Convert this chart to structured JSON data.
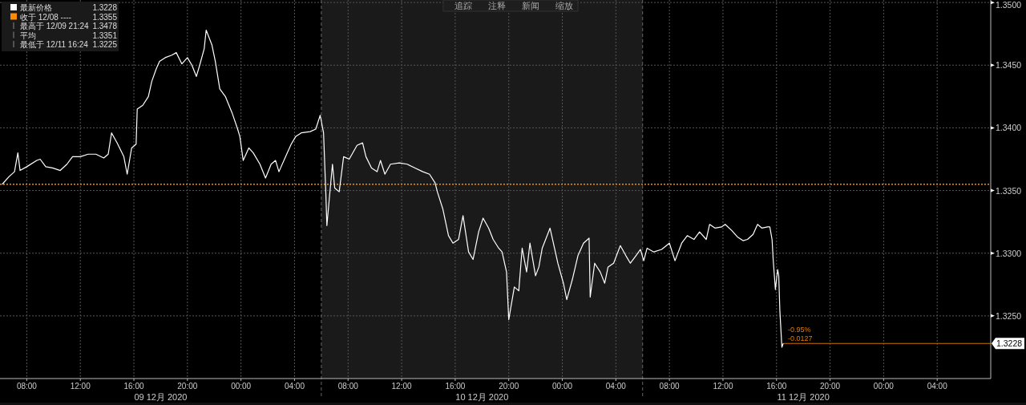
{
  "chart_data": {
    "type": "line",
    "xlim": [
      "2020-12-09T06:00",
      "2020-12-12T08:00"
    ],
    "xticks": [
      {
        "value": "2020-12-09T08:00",
        "label": "08:00"
      },
      {
        "value": "2020-12-09T12:00",
        "label": "12:00"
      },
      {
        "value": "2020-12-09T16:00",
        "label": "16:00"
      },
      {
        "value": "2020-12-09T20:00",
        "label": "20:00"
      },
      {
        "value": "2020-12-10T00:00",
        "label": "00:00"
      },
      {
        "value": "2020-12-10T04:00",
        "label": "04:00"
      },
      {
        "value": "2020-12-10T08:00",
        "label": "08:00"
      },
      {
        "value": "2020-12-10T12:00",
        "label": "12:00"
      },
      {
        "value": "2020-12-10T16:00",
        "label": "16:00"
      },
      {
        "value": "2020-12-10T20:00",
        "label": "20:00"
      },
      {
        "value": "2020-12-11T00:00",
        "label": "00:00"
      },
      {
        "value": "2020-12-11T04:00",
        "label": "04:00"
      },
      {
        "value": "2020-12-11T08:00",
        "label": "08:00"
      },
      {
        "value": "2020-12-11T12:00",
        "label": "12:00"
      },
      {
        "value": "2020-12-11T16:00",
        "label": "16:00"
      },
      {
        "value": "2020-12-11T20:00",
        "label": "20:00"
      },
      {
        "value": "2020-12-12T00:00",
        "label": "00:00"
      },
      {
        "value": "2020-12-12T04:00",
        "label": "04:00"
      }
    ],
    "x2lim": [
      "2020-12-09T06:00",
      "2020-12-12T08:00"
    ],
    "x2ticks": [
      {
        "value": "2020-12-09T18:00",
        "label": "09 12月 2020"
      },
      {
        "value": "2020-12-10T18:00",
        "label": "10 12月 2020"
      },
      {
        "value": "2020-12-11T18:00",
        "label": "11 12月 2020"
      }
    ],
    "ylim": [
      1.32,
      1.3502
    ],
    "yticks": [
      {
        "value": 1.325,
        "label": "1.3250"
      },
      {
        "value": 1.33,
        "label": "1.3300"
      },
      {
        "value": 1.335,
        "label": "1.3350"
      },
      {
        "value": 1.34,
        "label": "1.3400"
      },
      {
        "value": 1.345,
        "label": "1.3450"
      },
      {
        "value": 1.35,
        "label": "1.3500"
      }
    ],
    "grid": true,
    "legend": "top left",
    "line_style": "solid",
    "series": [
      {
        "name": "最新价格",
        "color": "#ffffff",
        "x": [
          "2020-12-09T06:10",
          "2020-12-09T06:40",
          "2020-12-09T07:05",
          "2020-12-09T07:20",
          "2020-12-09T07:30",
          "2020-12-09T08:00",
          "2020-12-09T08:45",
          "2020-12-09T09:00",
          "2020-12-09T09:25",
          "2020-12-09T09:55",
          "2020-12-09T10:30",
          "2020-12-09T11:00",
          "2020-12-09T11:25",
          "2020-12-09T12:00",
          "2020-12-09T12:35",
          "2020-12-09T13:10",
          "2020-12-09T13:45",
          "2020-12-09T14:05",
          "2020-12-09T14:20",
          "2020-12-09T14:45",
          "2020-12-09T15:15",
          "2020-12-09T15:30",
          "2020-12-09T15:50",
          "2020-12-09T16:10",
          "2020-12-09T16:15",
          "2020-12-09T16:40",
          "2020-12-09T17:05",
          "2020-12-09T17:20",
          "2020-12-09T17:40",
          "2020-12-09T17:55",
          "2020-12-09T18:20",
          "2020-12-09T18:50",
          "2020-12-09T19:10",
          "2020-12-09T19:35",
          "2020-12-09T20:00",
          "2020-12-09T20:20",
          "2020-12-09T20:40",
          "2020-12-09T20:55",
          "2020-12-09T21:15",
          "2020-12-09T21:24",
          "2020-12-09T21:50",
          "2020-12-09T22:05",
          "2020-12-09T22:25",
          "2020-12-09T22:50",
          "2020-12-09T23:20",
          "2020-12-09T23:45",
          "2020-12-09T23:55",
          "2020-12-10T00:10",
          "2020-12-10T00:35",
          "2020-12-10T00:55",
          "2020-12-10T01:25",
          "2020-12-10T01:50",
          "2020-12-10T02:15",
          "2020-12-10T02:35",
          "2020-12-10T02:50",
          "2020-12-10T03:20",
          "2020-12-10T03:45",
          "2020-12-10T04:05",
          "2020-12-10T04:30",
          "2020-12-10T05:10",
          "2020-12-10T05:35",
          "2020-12-10T05:55",
          "2020-12-10T06:10",
          "2020-12-10T06:20",
          "2020-12-10T06:25",
          "2020-12-10T06:35",
          "2020-12-10T06:50",
          "2020-12-10T07:00",
          "2020-12-10T07:20",
          "2020-12-10T07:40",
          "2020-12-10T08:05",
          "2020-12-10T08:40",
          "2020-12-10T09:05",
          "2020-12-10T09:20",
          "2020-12-10T09:45",
          "2020-12-10T10:10",
          "2020-12-10T10:25",
          "2020-12-10T10:45",
          "2020-12-10T11:10",
          "2020-12-10T11:50",
          "2020-12-10T12:25",
          "2020-12-10T13:00",
          "2020-12-10T13:35",
          "2020-12-10T14:05",
          "2020-12-10T14:30",
          "2020-12-10T14:40",
          "2020-12-10T15:05",
          "2020-12-10T15:30",
          "2020-12-10T15:50",
          "2020-12-10T16:15",
          "2020-12-10T16:35",
          "2020-12-10T17:00",
          "2020-12-10T17:20",
          "2020-12-10T17:45",
          "2020-12-10T18:05",
          "2020-12-10T18:30",
          "2020-12-10T18:50",
          "2020-12-10T19:15",
          "2020-12-10T19:30",
          "2020-12-10T19:50",
          "2020-12-10T20:00",
          "2020-12-10T20:25",
          "2020-12-10T20:45",
          "2020-12-10T21:00",
          "2020-12-10T21:20",
          "2020-12-10T21:35",
          "2020-12-10T22:00",
          "2020-12-10T22:15",
          "2020-12-10T22:30",
          "2020-12-10T23:05",
          "2020-12-10T23:25",
          "2020-12-10T23:40",
          "2020-12-11T00:05",
          "2020-12-11T00:20",
          "2020-12-11T00:45",
          "2020-12-11T01:10",
          "2020-12-11T01:35",
          "2020-12-11T02:00",
          "2020-12-11T02:05",
          "2020-12-11T02:25",
          "2020-12-11T02:50",
          "2020-12-11T03:10",
          "2020-12-11T03:25",
          "2020-12-11T03:50",
          "2020-12-11T04:20",
          "2020-12-11T04:45",
          "2020-12-11T05:05",
          "2020-12-11T05:30",
          "2020-12-11T05:50",
          "2020-12-11T06:05",
          "2020-12-11T06:20",
          "2020-12-11T06:50",
          "2020-12-11T07:25",
          "2020-12-11T08:00",
          "2020-12-11T08:25",
          "2020-12-11T08:55",
          "2020-12-11T09:20",
          "2020-12-11T09:50",
          "2020-12-11T10:15",
          "2020-12-11T10:45",
          "2020-12-11T11:00",
          "2020-12-11T11:25",
          "2020-12-11T11:55",
          "2020-12-11T12:10",
          "2020-12-11T12:40",
          "2020-12-11T13:05",
          "2020-12-11T13:30",
          "2020-12-11T13:50",
          "2020-12-11T14:15",
          "2020-12-11T14:35",
          "2020-12-11T14:55",
          "2020-12-11T15:20",
          "2020-12-11T15:30",
          "2020-12-11T15:40",
          "2020-12-11T15:45",
          "2020-12-11T15:55",
          "2020-12-11T16:05",
          "2020-12-11T16:10",
          "2020-12-11T16:15",
          "2020-12-11T16:20",
          "2020-12-11T16:24",
          "2020-12-11T16:30"
        ],
        "values": [
          1.3355,
          1.3361,
          1.3365,
          1.338,
          1.3366,
          1.3369,
          1.3374,
          1.3375,
          1.3369,
          1.3368,
          1.3366,
          1.3371,
          1.3377,
          1.3377,
          1.3379,
          1.3379,
          1.3376,
          1.3379,
          1.3396,
          1.3388,
          1.3377,
          1.3363,
          1.3384,
          1.3387,
          1.3415,
          1.3418,
          1.3425,
          1.3437,
          1.3447,
          1.3453,
          1.3456,
          1.3458,
          1.346,
          1.3451,
          1.3456,
          1.345,
          1.3441,
          1.345,
          1.3463,
          1.3478,
          1.3466,
          1.3453,
          1.3431,
          1.3425,
          1.3412,
          1.3399,
          1.3393,
          1.3374,
          1.3384,
          1.338,
          1.3371,
          1.336,
          1.3371,
          1.3374,
          1.3365,
          1.3377,
          1.3387,
          1.3393,
          1.3396,
          1.3397,
          1.3399,
          1.341,
          1.3396,
          1.3349,
          1.3322,
          1.3342,
          1.3371,
          1.3352,
          1.3349,
          1.3377,
          1.3375,
          1.3386,
          1.3388,
          1.3377,
          1.3368,
          1.3365,
          1.3374,
          1.3363,
          1.3371,
          1.3372,
          1.3371,
          1.3368,
          1.3365,
          1.3363,
          1.3356,
          1.3349,
          1.3335,
          1.3314,
          1.3308,
          1.3311,
          1.333,
          1.3301,
          1.3295,
          1.3317,
          1.3328,
          1.332,
          1.3311,
          1.3304,
          1.3301,
          1.3285,
          1.3247,
          1.3273,
          1.327,
          1.3304,
          1.3285,
          1.3308,
          1.3282,
          1.3289,
          1.3304,
          1.332,
          1.3304,
          1.3292,
          1.3276,
          1.3263,
          1.3279,
          1.3298,
          1.3308,
          1.3312,
          1.3265,
          1.3292,
          1.3285,
          1.3276,
          1.3289,
          1.3292,
          1.3306,
          1.3298,
          1.3292,
          1.3298,
          1.3303,
          1.3294,
          1.3304,
          1.3301,
          1.3303,
          1.3308,
          1.3294,
          1.3308,
          1.3314,
          1.3311,
          1.3317,
          1.3311,
          1.3323,
          1.332,
          1.3321,
          1.3323,
          1.3318,
          1.3313,
          1.331,
          1.3311,
          1.3315,
          1.3323,
          1.332,
          1.3321,
          1.3321,
          1.3311,
          1.3295,
          1.3271,
          1.3287,
          1.3282,
          1.3254,
          1.3238,
          1.3225,
          1.3228
        ]
      }
    ],
    "bands": [
      {
        "axis": "x",
        "from": "2020-12-10T06:00",
        "to": "2020-12-11T06:00",
        "color": "#1a1a1a"
      }
    ],
    "ref_lines": [
      {
        "axis": "y",
        "value": 1.3355,
        "label": "收于 12/08 ----",
        "color": "#ff8c00",
        "line_style": "dotted"
      },
      {
        "axis": "y",
        "value": 1.3228,
        "label": "1.3228",
        "color": "#d07000",
        "line_style": "solid"
      },
      {
        "axis": "x",
        "value": "2020-12-10T06:00",
        "color": "#666666",
        "line_style": "dashed"
      },
      {
        "axis": "x",
        "value": "2020-12-11T06:00",
        "color": "#666666",
        "line_style": "dashed"
      }
    ],
    "annotations": [
      "追踪",
      "注释",
      "新闻",
      "缩放",
      "1.3228",
      "1.3355",
      "最高于 12/09 21:24",
      "1.3478",
      "平均",
      "1.3351",
      "最低于 12/11 16:24",
      "1.3225",
      {
        "text": "-0.95%",
        "x": "2020-12-11T16:30",
        "y": 1.3228
      },
      {
        "text": "-0.0127",
        "x": "2020-12-11T16:30",
        "y": 1.3228
      }
    ]
  }
}
